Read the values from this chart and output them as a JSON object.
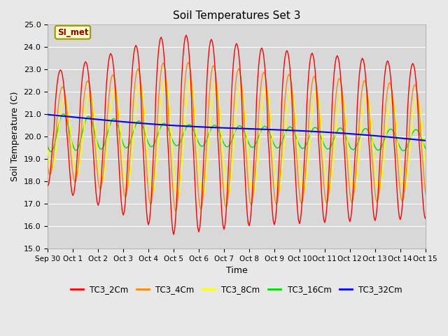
{
  "title": "Soil Temperatures Set 3",
  "xlabel": "Time",
  "ylabel": "Soil Temperature (C)",
  "ylim": [
    15.0,
    25.0
  ],
  "yticks": [
    15.0,
    16.0,
    17.0,
    18.0,
    19.0,
    20.0,
    21.0,
    22.0,
    23.0,
    24.0,
    25.0
  ],
  "xtick_labels": [
    "Sep 30",
    "Oct 1",
    "Oct 2",
    "Oct 3",
    "Oct 4",
    "Oct 5",
    "Oct 6",
    "Oct 7",
    "Oct 8",
    "Oct 9",
    "Oct 10",
    "Oct 11",
    "Oct 12",
    "Oct 13",
    "Oct 14",
    "Oct 15"
  ],
  "series": {
    "TC3_2Cm": {
      "color": "#FF0000",
      "linewidth": 1.0
    },
    "TC3_4Cm": {
      "color": "#FF8800",
      "linewidth": 1.0
    },
    "TC3_8Cm": {
      "color": "#FFFF00",
      "linewidth": 1.0
    },
    "TC3_16Cm": {
      "color": "#00DD00",
      "linewidth": 1.0
    },
    "TC3_32Cm": {
      "color": "#0000FF",
      "linewidth": 1.5
    }
  },
  "fig_bg": "#E8E8E8",
  "ax_bg": "#D8D8D8",
  "annotation_text": "SI_met",
  "annotation_bg": "#FFFFCC",
  "annotation_border": "#999900"
}
